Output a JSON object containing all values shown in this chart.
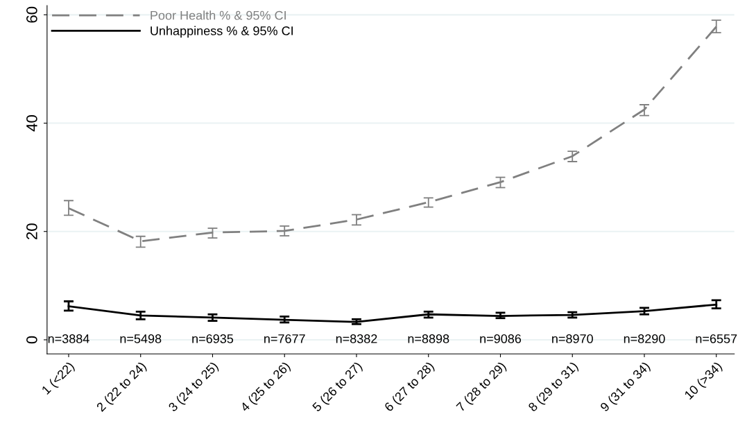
{
  "chart_data": {
    "type": "line",
    "categories": [
      "1 (<22)",
      "2 (22 to 24)",
      "3 (24 to 25)",
      "4 (25 to 26)",
      "5 (26 to 27)",
      "6 (27 to 28)",
      "7 (28 to 29)",
      "8 (29 to 31)",
      "9 (31 to 34)",
      "10 (>34)"
    ],
    "series": [
      {
        "name": "Poor Health % & 95% CI",
        "color": "#808080",
        "line_style": "dashed",
        "values": [
          24.3,
          18.2,
          19.8,
          20.1,
          22.2,
          25.4,
          29.1,
          33.9,
          42.5,
          57.8
        ],
        "errors": [
          [
            23.0,
            25.7
          ],
          [
            17.1,
            19.1
          ],
          [
            18.8,
            20.6
          ],
          [
            19.2,
            21.0
          ],
          [
            21.2,
            23.1
          ],
          [
            24.5,
            26.2
          ],
          [
            28.1,
            30.0
          ],
          [
            32.9,
            34.8
          ],
          [
            41.4,
            43.4
          ],
          [
            56.7,
            59.0
          ]
        ]
      },
      {
        "name": "Unhappiness % & 95% CI",
        "color": "#000000",
        "line_style": "solid",
        "values": [
          6.2,
          4.5,
          4.1,
          3.7,
          3.3,
          4.7,
          4.4,
          4.6,
          5.3,
          6.5
        ],
        "errors": [
          [
            5.4,
            7.1
          ],
          [
            3.8,
            5.2
          ],
          [
            3.5,
            4.7
          ],
          [
            3.2,
            4.3
          ],
          [
            2.9,
            3.8
          ],
          [
            4.1,
            5.2
          ],
          [
            4.0,
            5.0
          ],
          [
            4.1,
            5.1
          ],
          [
            4.7,
            5.9
          ],
          [
            5.8,
            7.3
          ]
        ]
      }
    ],
    "ylim": [
      -2.6,
      61.7
    ],
    "yticks": [
      0,
      20,
      40,
      60
    ],
    "grid": "y",
    "legend": "top left",
    "marker": "none",
    "annotations": [
      "n=3884",
      "n=5498",
      "n=6935",
      "n=7677",
      "n=8382",
      "n=8898",
      "n=9086",
      "n=8970",
      "n=8290",
      "n=6557"
    ]
  }
}
